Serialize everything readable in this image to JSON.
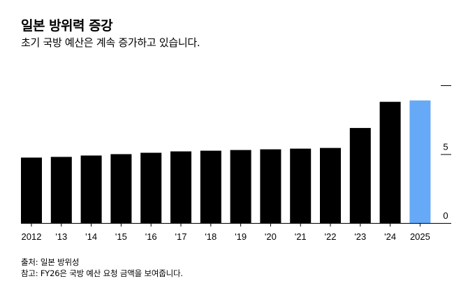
{
  "chart_data": {
    "type": "bar",
    "title": "일본 방위력 증강",
    "subtitle": "초기 국방 예산은 계속 증가하고 있습니다.",
    "categories": [
      "2012",
      "'13",
      "'14",
      "'15",
      "'16",
      "'17",
      "'18",
      "'19",
      "'20",
      "'21",
      "'22",
      "'23",
      "'24",
      "2025"
    ],
    "values": [
      4.75,
      4.8,
      4.9,
      5.0,
      5.1,
      5.2,
      5.25,
      5.3,
      5.35,
      5.4,
      5.45,
      6.9,
      8.8,
      8.9
    ],
    "bar_colors": [
      "#000000",
      "#000000",
      "#000000",
      "#000000",
      "#000000",
      "#000000",
      "#000000",
      "#000000",
      "#000000",
      "#000000",
      "#000000",
      "#000000",
      "#000000",
      "#66aaf7"
    ],
    "y_ticks": [
      {
        "value": 0,
        "label": "0"
      },
      {
        "value": 5,
        "label": "5"
      },
      {
        "value": 10,
        "label": ""
      }
    ],
    "ylim": [
      0,
      10
    ],
    "xlabel": "",
    "ylabel": "",
    "grid": false
  },
  "footer": {
    "source": "출처: 일본 방위성",
    "note": "참고: FY26은 국방 예산 요청 금액을 보여줍니다."
  }
}
